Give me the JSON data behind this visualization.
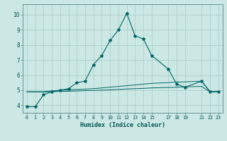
{
  "xlabel": "Humidex (Indice chaleur)",
  "ylabel": "",
  "bg_color": "#cce8e4",
  "grid_color": "#aacfcc",
  "line_color": "#006666",
  "text_color": "#005555",
  "xlim": [
    -0.5,
    23.5
  ],
  "ylim": [
    3.5,
    10.7
  ],
  "xticks": [
    0,
    1,
    2,
    3,
    4,
    5,
    6,
    7,
    8,
    9,
    10,
    11,
    12,
    13,
    14,
    15,
    17,
    18,
    19,
    21,
    22,
    23
  ],
  "yticks": [
    4,
    5,
    6,
    7,
    8,
    9,
    10
  ],
  "series1_x": [
    0,
    1,
    2,
    3,
    4,
    5,
    6,
    7,
    8,
    9,
    10,
    11,
    12,
    13,
    14,
    15,
    17,
    18,
    19,
    21,
    22,
    23
  ],
  "series1_y": [
    3.9,
    3.9,
    4.7,
    4.9,
    5.0,
    5.1,
    5.5,
    5.6,
    6.7,
    7.3,
    8.3,
    9.0,
    10.1,
    8.6,
    8.4,
    7.3,
    6.4,
    5.4,
    5.2,
    5.6,
    4.9,
    4.9
  ],
  "series2_x": [
    0,
    1,
    2,
    3,
    4,
    5,
    6,
    7,
    8,
    9,
    10,
    11,
    12,
    13,
    14,
    15,
    17,
    18,
    19,
    21,
    22,
    23
  ],
  "series2_y": [
    4.9,
    4.9,
    4.9,
    4.95,
    5.0,
    5.02,
    5.05,
    5.07,
    5.1,
    5.15,
    5.2,
    5.25,
    5.3,
    5.35,
    5.4,
    5.45,
    5.5,
    5.55,
    5.55,
    5.6,
    4.9,
    4.9
  ],
  "series3_x": [
    0,
    1,
    2,
    3,
    4,
    5,
    6,
    7,
    8,
    9,
    10,
    11,
    12,
    13,
    14,
    15,
    17,
    18,
    19,
    21,
    22,
    23
  ],
  "series3_y": [
    4.88,
    4.88,
    4.88,
    4.9,
    4.92,
    4.93,
    4.95,
    4.97,
    4.98,
    5.0,
    5.02,
    5.05,
    5.08,
    5.1,
    5.12,
    5.15,
    5.18,
    5.2,
    5.22,
    5.25,
    4.88,
    4.88
  ]
}
